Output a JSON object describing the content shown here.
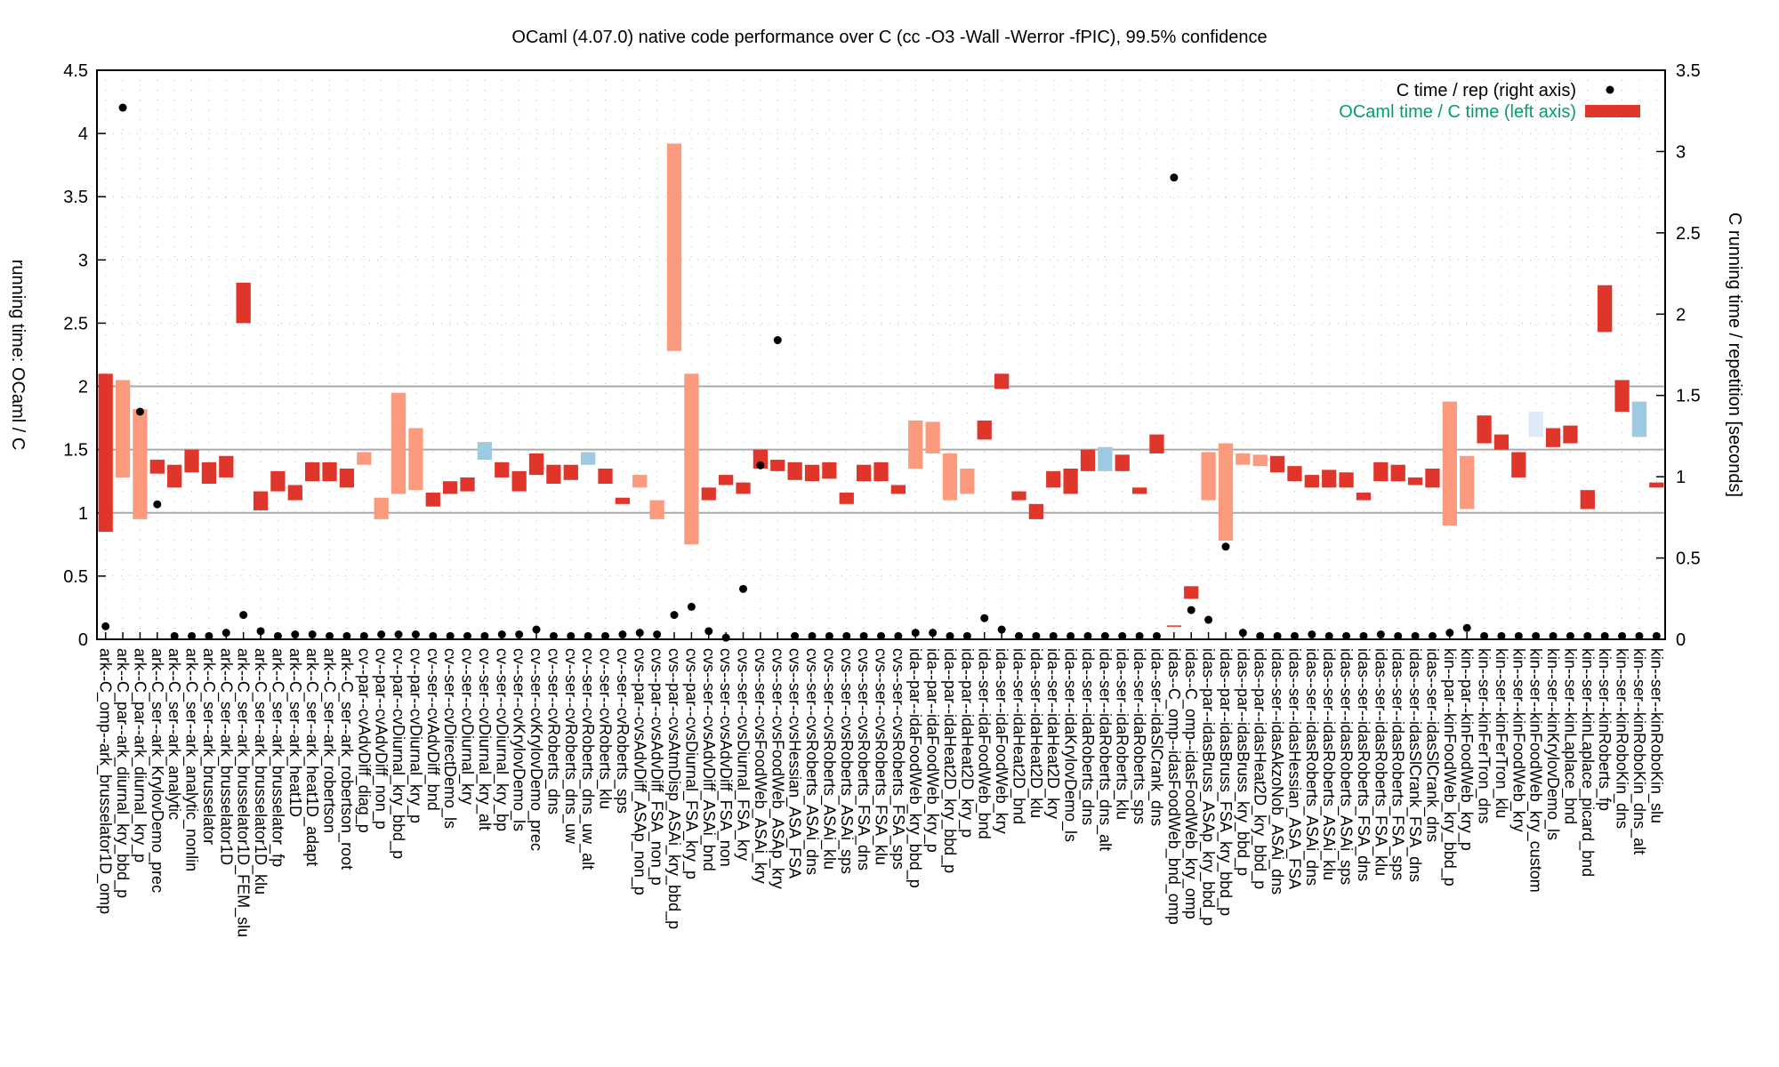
{
  "chart_data": {
    "type": "floating_bar",
    "title": "OCaml (4.07.0) native code performance over C (cc -O3 -Wall -Werror -fPIC), 99.5% confidence",
    "ylabel": "running time: OCaml / C",
    "y2label": "C running time / repetition [seconds]",
    "categories": [
      "ark--C_omp--ark_brusselator1D_omp",
      "ark--C_par--ark_diurnal_kry_bbd_p",
      "ark--C_par--ark_diurnal_kry_p",
      "ark--C_ser--ark_KrylovDemo_prec",
      "ark--C_ser--ark_analytic",
      "ark--C_ser--ark_analytic_nonlin",
      "ark--C_ser--ark_brusselator",
      "ark--C_ser--ark_brusselator1D",
      "ark--C_ser--ark_brusselator1D_FEM_slu",
      "ark--C_ser--ark_brusselator1D_klu",
      "ark--C_ser--ark_brusselator_fp",
      "ark--C_ser--ark_heat1D",
      "ark--C_ser--ark_heat1D_adapt",
      "ark--C_ser--ark_robertson",
      "ark--C_ser--ark_robertson_root",
      "cv--par--cvAdvDiff_diag_p",
      "cv--par--cvAdvDiff_non_p",
      "cv--par--cvDiurnal_kry_bbd_p",
      "cv--par--cvDiurnal_kry_p",
      "cv--ser--cvAdvDiff_bnd",
      "cv--ser--cvDirectDemo_ls",
      "cv--ser--cvDiurnal_kry",
      "cv--ser--cvDiurnal_kry_alt",
      "cv--ser--cvDiurnal_kry_bp",
      "cv--ser--cvKrylovDemo_ls",
      "cv--ser--cvKrylovDemo_prec",
      "cv--ser--cvRoberts_dns",
      "cv--ser--cvRoberts_dns_uw",
      "cv--ser--cvRoberts_dns_uw_alt",
      "cv--ser--cvRoberts_klu",
      "cv--ser--cvRoberts_sps",
      "cvs--par--cvsAdvDiff_ASAp_non_p",
      "cvs--par--cvsAdvDiff_FSA_non_p",
      "cvs--par--cvsAtmDisp_ASAi_kry_bbd_p",
      "cvs--par--cvsDiurnal_FSA_kry_p",
      "cvs--ser--cvsAdvDiff_ASAi_bnd",
      "cvs--ser--cvsAdvDiff_FSA_non",
      "cvs--ser--cvsDiurnal_FSA_kry",
      "cvs--ser--cvsFoodWeb_ASAi_kry",
      "cvs--ser--cvsFoodWeb_ASAp_kry",
      "cvs--ser--cvsHessian_ASA_FSA",
      "cvs--ser--cvsRoberts_ASAi_dns",
      "cvs--ser--cvsRoberts_ASAi_klu",
      "cvs--ser--cvsRoberts_ASAi_sps",
      "cvs--ser--cvsRoberts_FSA_dns",
      "cvs--ser--cvsRoberts_FSA_klu",
      "cvs--ser--cvsRoberts_FSA_sps",
      "ida--par--idaFoodWeb_kry_bbd_p",
      "ida--par--idaFoodWeb_kry_p",
      "ida--par--idaHeat2D_kry_bbd_p",
      "ida--par--idaHeat2D_kry_p",
      "ida--ser--idaFoodWeb_bnd",
      "ida--ser--idaFoodWeb_kry",
      "ida--ser--idaHeat2D_bnd",
      "ida--ser--idaHeat2D_klu",
      "ida--ser--idaHeat2D_kry",
      "ida--ser--idaKrylovDemo_ls",
      "ida--ser--idaRoberts_dns",
      "ida--ser--idaRoberts_dns_alt",
      "ida--ser--idaRoberts_klu",
      "ida--ser--idaRoberts_sps",
      "ida--ser--idaSlCrank_dns",
      "idas--C_omp--idasFoodWeb_bnd_omp",
      "idas--C_omp--idasFoodWeb_kry_omp",
      "idas--par--idasBruss_ASAp_kry_bbd_p",
      "idas--par--idasBruss_FSA_kry_bbd_p",
      "idas--par--idasBruss_kry_bbd_p",
      "idas--par--idasHeat2D_kry_bbd_p",
      "idas--ser--idasAkzoNob_ASAi_dns",
      "idas--ser--idasHessian_ASA_FSA",
      "idas--ser--idasRoberts_ASAi_dns",
      "idas--ser--idasRoberts_ASAi_klu",
      "idas--ser--idasRoberts_ASAi_sps",
      "idas--ser--idasRoberts_FSA_dns",
      "idas--ser--idasRoberts_FSA_klu",
      "idas--ser--idasRoberts_FSA_sps",
      "idas--ser--idasSlCrank_FSA_dns",
      "idas--ser--idasSlCrank_dns",
      "kin--par--kinFoodWeb_kry_bbd_p",
      "kin--par--kinFoodWeb_kry_p",
      "kin--ser--kinFerTron_dns",
      "kin--ser--kinFerTron_klu",
      "kin--ser--kinFoodWeb_kry",
      "kin--ser--kinFoodWeb_kry_custom",
      "kin--ser--kinKrylovDemo_ls",
      "kin--ser--kinLaplace_bnd",
      "kin--ser--kinLaplace_picard_bnd",
      "kin--ser--kinRoberts_fp",
      "kin--ser--kinRoboKin_dns",
      "kin--ser--kinRoboKin_dns_alt",
      "kin--ser--kinRoboKin_slu"
    ],
    "series": [
      {
        "name": "C time / rep (right axis)",
        "axis": "y2",
        "color": "#000000",
        "values": [
          0.08,
          3.27,
          1.4,
          0.83,
          0.02,
          0.02,
          0.02,
          0.04,
          0.15,
          0.05,
          0.02,
          0.03,
          0.03,
          0.02,
          0.02,
          0.02,
          0.03,
          0.03,
          0.03,
          0.02,
          0.02,
          0.02,
          0.02,
          0.03,
          0.03,
          0.06,
          0.02,
          0.02,
          0.02,
          0.02,
          0.03,
          0.04,
          0.03,
          0.15,
          0.2,
          0.05,
          0.01,
          0.31,
          1.07,
          1.84,
          0.02,
          0.02,
          0.02,
          0.02,
          0.02,
          0.02,
          0.02,
          0.04,
          0.04,
          0.02,
          0.02,
          0.13,
          0.06,
          0.02,
          0.02,
          0.02,
          0.02,
          0.02,
          0.02,
          0.02,
          0.02,
          0.02,
          2.84,
          0.18,
          0.12,
          0.57,
          0.04,
          0.02,
          0.02,
          0.02,
          0.03,
          0.02,
          0.02,
          0.02,
          0.03,
          0.02,
          0.02,
          0.02,
          0.04,
          0.07,
          0.02,
          0.02,
          0.02,
          0.02,
          0.02,
          0.02,
          0.02,
          0.02,
          0.02,
          0.02,
          0.02
        ]
      },
      {
        "name": "OCaml time / C time (left axis)",
        "color": "#e0352b",
        "label_color": "#009e73",
        "low": [
          0.85,
          1.28,
          0.95,
          1.31,
          1.2,
          1.32,
          1.23,
          1.28,
          2.5,
          1.02,
          1.17,
          1.1,
          1.25,
          1.25,
          1.2,
          1.38,
          0.95,
          1.15,
          1.18,
          1.05,
          1.15,
          1.17,
          1.42,
          1.28,
          1.17,
          1.3,
          1.23,
          1.26,
          1.38,
          1.23,
          1.07,
          1.2,
          0.95,
          2.28,
          0.75,
          1.1,
          1.22,
          1.15,
          1.35,
          1.33,
          1.26,
          1.25,
          1.27,
          1.07,
          1.25,
          1.25,
          1.15,
          1.35,
          1.47,
          1.1,
          1.15,
          1.58,
          1.98,
          1.1,
          0.95,
          1.2,
          1.15,
          1.33,
          1.33,
          1.33,
          1.15,
          1.47,
          0.1,
          0.32,
          1.1,
          0.78,
          1.38,
          1.37,
          1.32,
          1.25,
          1.2,
          1.2,
          1.2,
          1.1,
          1.25,
          1.25,
          1.22,
          1.2,
          0.9,
          1.03,
          1.55,
          1.5,
          1.28,
          1.6,
          1.52,
          1.55,
          1.03,
          2.43,
          1.8,
          1.6,
          1.2
        ],
        "high": [
          2.1,
          2.05,
          1.82,
          1.42,
          1.38,
          1.5,
          1.4,
          1.45,
          2.82,
          1.17,
          1.33,
          1.22,
          1.4,
          1.4,
          1.35,
          1.48,
          1.12,
          1.95,
          1.67,
          1.16,
          1.25,
          1.28,
          1.56,
          1.4,
          1.33,
          1.47,
          1.38,
          1.38,
          1.48,
          1.35,
          1.12,
          1.3,
          1.1,
          3.92,
          2.1,
          1.2,
          1.3,
          1.24,
          1.5,
          1.42,
          1.4,
          1.38,
          1.4,
          1.16,
          1.38,
          1.4,
          1.22,
          1.73,
          1.72,
          1.47,
          1.35,
          1.73,
          2.1,
          1.17,
          1.07,
          1.33,
          1.35,
          1.5,
          1.52,
          1.46,
          1.2,
          1.62,
          0.11,
          0.42,
          1.48,
          1.55,
          1.47,
          1.46,
          1.45,
          1.37,
          1.3,
          1.34,
          1.32,
          1.16,
          1.4,
          1.38,
          1.28,
          1.35,
          1.88,
          1.45,
          1.77,
          1.62,
          1.48,
          1.8,
          1.67,
          1.69,
          1.18,
          2.8,
          2.05,
          1.88,
          1.24
        ],
        "colors": [
          "#e0352b",
          "#fb9a7d",
          "#fb9a7d",
          "#e0352b",
          "#e0352b",
          "#e0352b",
          "#e0352b",
          "#e0352b",
          "#e0352b",
          "#e0352b",
          "#e0352b",
          "#e0352b",
          "#e0352b",
          "#e0352b",
          "#e0352b",
          "#fb9a7d",
          "#fb9a7d",
          "#fb9a7d",
          "#fb9a7d",
          "#e0352b",
          "#e0352b",
          "#e0352b",
          "#9ecae1",
          "#e0352b",
          "#e0352b",
          "#e0352b",
          "#e0352b",
          "#e0352b",
          "#9ecae1",
          "#e0352b",
          "#e0352b",
          "#fb9a7d",
          "#fb9a7d",
          "#fb9a7d",
          "#fb9a7d",
          "#e0352b",
          "#e0352b",
          "#e0352b",
          "#e0352b",
          "#e0352b",
          "#e0352b",
          "#e0352b",
          "#e0352b",
          "#e0352b",
          "#e0352b",
          "#e0352b",
          "#e0352b",
          "#fb9a7d",
          "#fb9a7d",
          "#fb9a7d",
          "#fb9a7d",
          "#e0352b",
          "#e0352b",
          "#e0352b",
          "#e0352b",
          "#e0352b",
          "#e0352b",
          "#e0352b",
          "#9ecae1",
          "#e0352b",
          "#e0352b",
          "#e0352b",
          "#e0352b",
          "#e0352b",
          "#fb9a7d",
          "#fb9a7d",
          "#fb9a7d",
          "#fb9a7d",
          "#e0352b",
          "#e0352b",
          "#e0352b",
          "#e0352b",
          "#e0352b",
          "#e0352b",
          "#e0352b",
          "#e0352b",
          "#e0352b",
          "#e0352b",
          "#fb9a7d",
          "#fb9a7d",
          "#e0352b",
          "#e0352b",
          "#e0352b",
          "#deebf7",
          "#e0352b",
          "#e0352b",
          "#e0352b",
          "#e0352b",
          "#e0352b",
          "#9ecae1",
          "#e0352b"
        ]
      }
    ],
    "ylim": [
      0,
      4.5
    ],
    "yticks": [
      0,
      0.5,
      1,
      1.5,
      2,
      2.5,
      3,
      3.5,
      4,
      4.5
    ],
    "y2lim": [
      0,
      3.5
    ],
    "y2ticks": [
      0,
      0.5,
      1,
      1.5,
      2,
      2.5,
      3,
      3.5
    ],
    "ref_lines": [
      1,
      1.5,
      2
    ],
    "grid": true,
    "legend": "top-right"
  }
}
